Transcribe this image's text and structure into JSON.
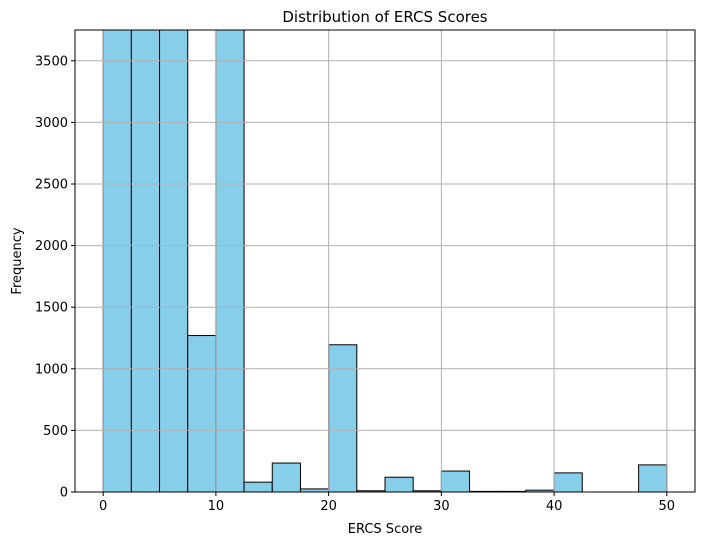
{
  "chart_data": {
    "type": "bar",
    "title": "Distribution of ERCS Scores",
    "xlabel": "ERCS Score",
    "ylabel": "Frequency",
    "xlim": [
      -2.5,
      52.5
    ],
    "ylim": [
      0,
      3750
    ],
    "xticks": [
      0,
      10,
      20,
      30,
      40,
      50
    ],
    "yticks": [
      0,
      500,
      1000,
      1500,
      2000,
      2500,
      3000,
      3500
    ],
    "grid": true,
    "bar_color": "#87CEEB",
    "edge_color": "#000000",
    "bins": [
      {
        "start": 0,
        "end": 2.5,
        "value": 3750
      },
      {
        "start": 2.5,
        "end": 5,
        "value": 3750
      },
      {
        "start": 5,
        "end": 7.5,
        "value": 3750
      },
      {
        "start": 7.5,
        "end": 10,
        "value": 1270
      },
      {
        "start": 10,
        "end": 12.5,
        "value": 3750
      },
      {
        "start": 12.5,
        "end": 15,
        "value": 80
      },
      {
        "start": 15,
        "end": 17.5,
        "value": 235
      },
      {
        "start": 17.5,
        "end": 20,
        "value": 25
      },
      {
        "start": 20,
        "end": 22.5,
        "value": 1195
      },
      {
        "start": 22.5,
        "end": 25,
        "value": 10
      },
      {
        "start": 25,
        "end": 27.5,
        "value": 120
      },
      {
        "start": 27.5,
        "end": 30,
        "value": 10
      },
      {
        "start": 30,
        "end": 32.5,
        "value": 170
      },
      {
        "start": 32.5,
        "end": 35,
        "value": 5
      },
      {
        "start": 35,
        "end": 37.5,
        "value": 5
      },
      {
        "start": 37.5,
        "end": 40,
        "value": 15
      },
      {
        "start": 40,
        "end": 42.5,
        "value": 155
      },
      {
        "start": 42.5,
        "end": 45,
        "value": 0
      },
      {
        "start": 45,
        "end": 47.5,
        "value": 0
      },
      {
        "start": 47.5,
        "end": 50,
        "value": 220
      }
    ]
  }
}
